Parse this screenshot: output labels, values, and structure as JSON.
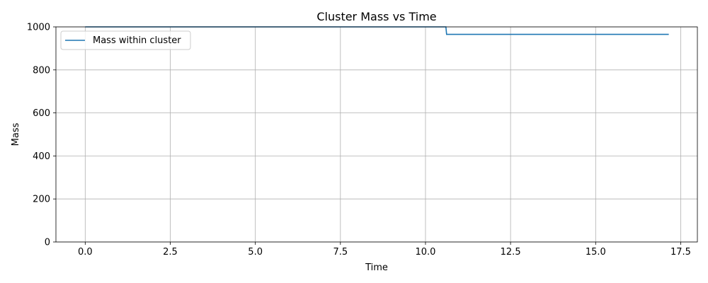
{
  "chart_data": {
    "type": "line",
    "title": "Cluster Mass vs Time",
    "xlabel": "Time",
    "ylabel": "Mass",
    "xlim": [
      -0.86,
      17.99
    ],
    "ylim": [
      0,
      1000
    ],
    "xticks": [
      0.0,
      2.5,
      5.0,
      7.5,
      10.0,
      12.5,
      15.0,
      17.5
    ],
    "xtick_labels": [
      "0.0",
      "2.5",
      "5.0",
      "7.5",
      "10.0",
      "12.5",
      "15.0",
      "17.5"
    ],
    "yticks": [
      0,
      200,
      400,
      600,
      800,
      1000
    ],
    "ytick_labels": [
      "0",
      "200",
      "400",
      "600",
      "800",
      "1000"
    ],
    "grid": true,
    "legend_position": "top-left",
    "series": [
      {
        "name": "Mass within cluster",
        "color": "#1f77b4",
        "x": [
          0.0,
          10.6,
          10.62,
          17.15
        ],
        "y": [
          1000,
          1000,
          965,
          965
        ]
      }
    ]
  }
}
